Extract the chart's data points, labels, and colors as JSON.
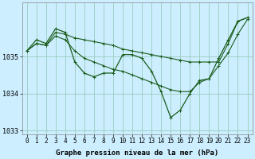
{
  "title": "Graphe pression niveau de la mer (hPa)",
  "background_color": "#cceeff",
  "grid_color": "#99ccbb",
  "line_color": "#1a5c1a",
  "hours": [
    0,
    1,
    2,
    3,
    4,
    5,
    6,
    7,
    8,
    9,
    10,
    11,
    12,
    13,
    14,
    15,
    16,
    17,
    18,
    19,
    20,
    21,
    22,
    23
  ],
  "pressure_main": [
    1035.15,
    1035.45,
    1035.35,
    1035.75,
    1035.65,
    1034.85,
    1034.55,
    1034.45,
    1034.55,
    1034.55,
    1035.05,
    1035.05,
    1034.95,
    1034.6,
    1034.05,
    1033.35,
    1033.55,
    1034.0,
    1034.35,
    1034.4,
    1034.95,
    1035.45,
    1035.95,
    1036.05
  ],
  "pressure_upper": [
    1035.15,
    1035.35,
    1035.3,
    1035.65,
    1035.6,
    1035.5,
    1035.45,
    1035.4,
    1035.35,
    1035.3,
    1035.2,
    1035.15,
    1035.1,
    1035.05,
    1035.0,
    1034.95,
    1034.9,
    1034.85,
    1034.85,
    1034.85,
    1034.85,
    1035.35,
    1035.95,
    1036.05
  ],
  "pressure_lower": [
    1035.15,
    1035.35,
    1035.3,
    1035.55,
    1035.45,
    1035.15,
    1034.95,
    1034.85,
    1034.75,
    1034.65,
    1034.6,
    1034.5,
    1034.4,
    1034.3,
    1034.2,
    1034.1,
    1034.05,
    1034.05,
    1034.3,
    1034.4,
    1034.75,
    1035.1,
    1035.6,
    1036.0
  ],
  "ylim": [
    1032.9,
    1036.45
  ],
  "yticks": [
    1033,
    1034,
    1035
  ],
  "title_fontsize": 6.5,
  "tick_fontsize": 5.5
}
